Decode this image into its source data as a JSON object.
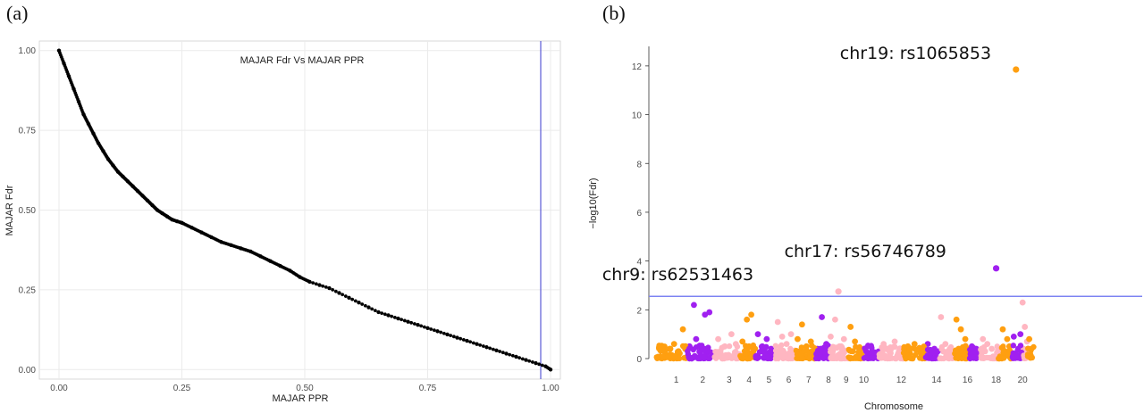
{
  "chart_data": [
    {
      "panel": "(a)",
      "type": "scatter",
      "title": "MAJAR Fdr Vs MAJAR PPR",
      "xlabel": "MAJAR PPR",
      "ylabel": "MAJAR Fdr",
      "xlim": [
        -0.04,
        1.02
      ],
      "ylim": [
        -0.03,
        1.03
      ],
      "xticks": [
        "0.00",
        "0.25",
        "0.50",
        "0.75",
        "1.00"
      ],
      "yticks": [
        "0.00",
        "0.25",
        "0.50",
        "0.75",
        "1.00"
      ],
      "grid": true,
      "reference_vline": 0.98,
      "reference_color": "#5b5bd6",
      "point_color": "#000000",
      "x": [
        0.0,
        0.01,
        0.02,
        0.03,
        0.04,
        0.05,
        0.06,
        0.07,
        0.08,
        0.09,
        0.1,
        0.11,
        0.12,
        0.13,
        0.14,
        0.15,
        0.16,
        0.17,
        0.18,
        0.19,
        0.2,
        0.21,
        0.22,
        0.23,
        0.24,
        0.25,
        0.27,
        0.29,
        0.31,
        0.33,
        0.35,
        0.37,
        0.39,
        0.41,
        0.43,
        0.45,
        0.47,
        0.49,
        0.51,
        0.53,
        0.55,
        0.57,
        0.59,
        0.61,
        0.63,
        0.65,
        0.67,
        0.69,
        0.71,
        0.73,
        0.75,
        0.77,
        0.79,
        0.81,
        0.83,
        0.85,
        0.87,
        0.89,
        0.91,
        0.93,
        0.95,
        0.97,
        0.99,
        1.0
      ],
      "y": [
        1.0,
        0.96,
        0.92,
        0.88,
        0.84,
        0.8,
        0.77,
        0.74,
        0.71,
        0.685,
        0.66,
        0.64,
        0.62,
        0.605,
        0.59,
        0.575,
        0.56,
        0.545,
        0.53,
        0.515,
        0.5,
        0.49,
        0.48,
        0.47,
        0.465,
        0.46,
        0.445,
        0.43,
        0.415,
        0.4,
        0.39,
        0.38,
        0.37,
        0.355,
        0.34,
        0.325,
        0.31,
        0.29,
        0.275,
        0.265,
        0.255,
        0.24,
        0.225,
        0.21,
        0.195,
        0.18,
        0.17,
        0.16,
        0.15,
        0.14,
        0.13,
        0.12,
        0.11,
        0.1,
        0.09,
        0.08,
        0.07,
        0.06,
        0.05,
        0.04,
        0.03,
        0.02,
        0.01,
        0.0
      ]
    },
    {
      "panel": "(b)",
      "type": "scatter",
      "title": "",
      "xlabel": "Chromosome",
      "ylabel": "−log10(Fdr)",
      "xlim": [
        0,
        22
      ],
      "ylim": [
        0,
        12.8
      ],
      "xticks": [
        "1",
        "2",
        "3",
        "4",
        "5",
        "6",
        "7",
        "8",
        "9",
        "10",
        "12",
        "14",
        "16",
        "18",
        "20"
      ],
      "xtick_positions": [
        1.0,
        2.2,
        3.4,
        4.3,
        5.2,
        6.1,
        7.0,
        7.9,
        8.7,
        9.5,
        11.2,
        12.8,
        14.2,
        15.5,
        16.7
      ],
      "yticks": [
        "0",
        "2",
        "4",
        "6",
        "8",
        "10",
        "12"
      ],
      "grid": false,
      "threshold": 2.55,
      "threshold_color": "#7c83f2",
      "chromosome_colors": [
        "#ff9f10",
        "#a020f0",
        "#ffb6c1"
      ],
      "annotations": [
        {
          "text": "chr19: rs1065853",
          "x": 16.4,
          "y": 11.85
        },
        {
          "text": "chr17: rs56746789",
          "x": 15.5,
          "y": 3.7
        },
        {
          "text": "chr9: rs62531463",
          "x": 8.3,
          "y": 2.75
        }
      ],
      "highlight_points": [
        {
          "x": 16.4,
          "y": 11.85,
          "color": "#ff9f10"
        },
        {
          "x": 15.5,
          "y": 3.7,
          "color": "#a020f0"
        },
        {
          "x": 8.35,
          "y": 2.75,
          "color": "#ffb6c1"
        }
      ],
      "points": [
        [
          0.7,
          0.4,
          0
        ],
        [
          0.9,
          0.6,
          0
        ],
        [
          1.1,
          0.3,
          0
        ],
        [
          1.3,
          1.2,
          0
        ],
        [
          0.5,
          0.2,
          0
        ],
        [
          1.6,
          0.5,
          1
        ],
        [
          1.8,
          2.2,
          1
        ],
        [
          1.9,
          0.8,
          1
        ],
        [
          2.3,
          1.8,
          1
        ],
        [
          2.5,
          1.9,
          1
        ],
        [
          2.1,
          0.3,
          1
        ],
        [
          2.4,
          0.4,
          1
        ],
        [
          2.9,
          0.8,
          2
        ],
        [
          3.2,
          0.5,
          2
        ],
        [
          3.5,
          1.0,
          2
        ],
        [
          3.7,
          0.6,
          2
        ],
        [
          3.0,
          0.3,
          2
        ],
        [
          4.0,
          0.7,
          0
        ],
        [
          4.2,
          1.6,
          0
        ],
        [
          4.4,
          1.8,
          0
        ],
        [
          4.1,
          0.3,
          0
        ],
        [
          4.3,
          0.5,
          0
        ],
        [
          4.7,
          1.0,
          1
        ],
        [
          4.9,
          0.5,
          1
        ],
        [
          5.1,
          0.8,
          1
        ],
        [
          5.3,
          0.4,
          1
        ],
        [
          5.0,
          0.3,
          1
        ],
        [
          5.6,
          1.5,
          2
        ],
        [
          5.8,
          0.9,
          2
        ],
        [
          6.0,
          0.6,
          2
        ],
        [
          6.2,
          1.0,
          2
        ],
        [
          5.7,
          0.3,
          2
        ],
        [
          6.5,
          0.8,
          0
        ],
        [
          6.7,
          1.4,
          0
        ],
        [
          6.9,
          0.5,
          0
        ],
        [
          7.1,
          0.7,
          0
        ],
        [
          6.6,
          0.3,
          0
        ],
        [
          7.4,
          0.4,
          1
        ],
        [
          7.6,
          1.7,
          1
        ],
        [
          7.8,
          0.6,
          1
        ],
        [
          7.5,
          0.3,
          1
        ],
        [
          8.0,
          0.9,
          2
        ],
        [
          8.2,
          1.6,
          2
        ],
        [
          8.4,
          0.5,
          2
        ],
        [
          8.6,
          0.8,
          2
        ],
        [
          8.1,
          0.3,
          2
        ],
        [
          8.9,
          1.3,
          0
        ],
        [
          9.1,
          0.7,
          0
        ],
        [
          9.3,
          0.4,
          0
        ],
        [
          9.0,
          0.3,
          0
        ],
        [
          9.6,
          0.3,
          1
        ],
        [
          9.8,
          0.2,
          1
        ],
        [
          10.0,
          0.15,
          1
        ],
        [
          10.4,
          0.6,
          2
        ],
        [
          10.6,
          0.4,
          2
        ],
        [
          10.9,
          0.7,
          2
        ],
        [
          11.1,
          0.3,
          2
        ],
        [
          11.5,
          0.5,
          0
        ],
        [
          11.8,
          0.6,
          0
        ],
        [
          12.1,
          0.4,
          0
        ],
        [
          11.6,
          0.2,
          0
        ],
        [
          12.4,
          0.6,
          1
        ],
        [
          12.7,
          0.4,
          1
        ],
        [
          12.5,
          0.3,
          1
        ],
        [
          13.0,
          1.7,
          2
        ],
        [
          13.2,
          0.6,
          2
        ],
        [
          13.4,
          0.4,
          2
        ],
        [
          13.1,
          0.3,
          2
        ],
        [
          13.7,
          1.6,
          0
        ],
        [
          13.9,
          1.2,
          0
        ],
        [
          14.1,
          0.8,
          0
        ],
        [
          13.8,
          0.4,
          0
        ],
        [
          14.4,
          0.5,
          1
        ],
        [
          14.6,
          0.4,
          1
        ],
        [
          14.5,
          0.3,
          1
        ],
        [
          14.9,
          0.8,
          2
        ],
        [
          15.1,
          0.6,
          2
        ],
        [
          15.3,
          0.4,
          2
        ],
        [
          15.0,
          0.3,
          2
        ],
        [
          15.8,
          1.2,
          0
        ],
        [
          16.0,
          0.8,
          0
        ],
        [
          16.1,
          0.5,
          0
        ],
        [
          15.9,
          0.3,
          0
        ],
        [
          16.3,
          0.9,
          1
        ],
        [
          16.5,
          0.4,
          1
        ],
        [
          16.6,
          1.0,
          1
        ],
        [
          16.7,
          2.3,
          2
        ],
        [
          16.8,
          1.3,
          2
        ],
        [
          16.9,
          0.7,
          2
        ],
        [
          16.75,
          0.4,
          2
        ],
        [
          17.0,
          0.8,
          0
        ],
        [
          17.1,
          0.4,
          0
        ],
        [
          17.05,
          0.3,
          0
        ]
      ]
    }
  ]
}
